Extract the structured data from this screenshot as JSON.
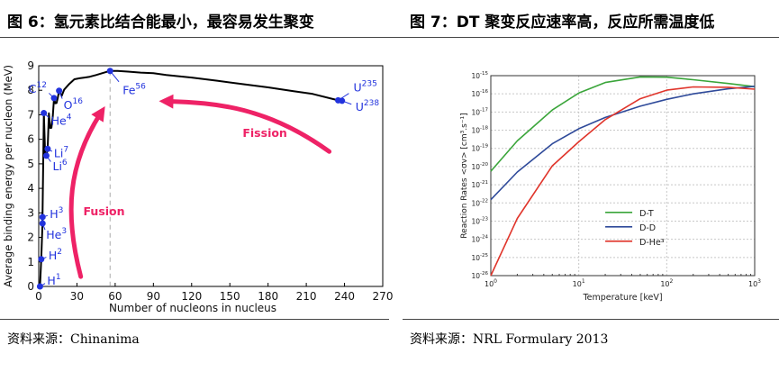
{
  "header": {
    "fig6_title": "图 6：氢元素比结合能最小，最容易发生聚变",
    "fig7_title": "图 7：DT 聚变反应速率高，反应所需温度低"
  },
  "footer": {
    "source6": "资料来源：Chinanima",
    "source7": "资料来源：NRL Formulary 2013"
  },
  "colors": {
    "nuclide": "#2233dd",
    "arrow": "#ee2266",
    "dt": "#3aa53a",
    "dd": "#2f4a9a",
    "dhe3": "#e0352b"
  },
  "chart_data": [
    {
      "type": "line",
      "xlabel": "Number of nucleons in nucleus",
      "ylabel": "Average binding energy per nucleon (MeV)",
      "xlim": [
        0,
        270
      ],
      "ylim": [
        0,
        9
      ],
      "xticks": [
        0,
        30,
        60,
        90,
        120,
        150,
        180,
        210,
        240,
        270
      ],
      "yticks": [
        0,
        1,
        2,
        3,
        4,
        5,
        6,
        7,
        8,
        9
      ],
      "series": [
        {
          "points": [
            [
              1,
              0
            ],
            [
              2,
              1.11
            ],
            [
              3,
              2.57
            ],
            [
              3,
              2.83
            ],
            [
              4,
              7.07
            ],
            [
              5,
              5.4
            ],
            [
              6,
              5.33
            ],
            [
              7,
              5.61
            ],
            [
              8,
              7.06
            ],
            [
              9,
              6.46
            ],
            [
              10,
              6.47
            ],
            [
              11,
              6.93
            ],
            [
              12,
              7.68
            ],
            [
              13,
              7.47
            ],
            [
              14,
              7.48
            ],
            [
              15,
              7.7
            ],
            [
              16,
              7.98
            ],
            [
              18,
              7.77
            ],
            [
              20,
              8.03
            ],
            [
              24,
              8.26
            ],
            [
              28,
              8.45
            ],
            [
              32,
              8.49
            ],
            [
              36,
              8.52
            ],
            [
              40,
              8.55
            ],
            [
              45,
              8.62
            ],
            [
              50,
              8.7
            ],
            [
              56,
              8.79
            ],
            [
              62,
              8.79
            ],
            [
              70,
              8.76
            ],
            [
              80,
              8.72
            ],
            [
              90,
              8.7
            ],
            [
              100,
              8.62
            ],
            [
              120,
              8.52
            ],
            [
              140,
              8.39
            ],
            [
              160,
              8.25
            ],
            [
              180,
              8.12
            ],
            [
              200,
              7.96
            ],
            [
              215,
              7.85
            ],
            [
              235,
              7.59
            ],
            [
              238,
              7.57
            ]
          ]
        }
      ],
      "nuclides": [
        {
          "symbol": "H",
          "mass": "1",
          "x": 1,
          "y": 0
        },
        {
          "symbol": "H",
          "mass": "2",
          "x": 2,
          "y": 1.11
        },
        {
          "symbol": "He",
          "mass": "3",
          "x": 3,
          "y": 2.57
        },
        {
          "symbol": "H",
          "mass": "3",
          "x": 3,
          "y": 2.83
        },
        {
          "symbol": "Li",
          "mass": "6",
          "x": 6,
          "y": 5.33
        },
        {
          "symbol": "Li",
          "mass": "7",
          "x": 7,
          "y": 5.61
        },
        {
          "symbol": "He",
          "mass": "4",
          "x": 4,
          "y": 7.07
        },
        {
          "symbol": "O",
          "mass": "16",
          "x": 16,
          "y": 7.98
        },
        {
          "symbol": "C",
          "mass": "12",
          "x": 12,
          "y": 7.68
        },
        {
          "symbol": "Fe",
          "mass": "56",
          "x": 56,
          "y": 8.79
        },
        {
          "symbol": "U",
          "mass": "235",
          "x": 235,
          "y": 7.59
        },
        {
          "symbol": "U",
          "mass": "238",
          "x": 238,
          "y": 7.57
        }
      ],
      "annotations": [
        "Fusion",
        "Fission"
      ]
    },
    {
      "type": "line",
      "log_x": true,
      "log_y": true,
      "xlabel": "Temperature [keV]",
      "ylabel": "Reaction Rates <σv> [cm³.s⁻¹]",
      "xlim": [
        1,
        1000
      ],
      "ylim": [
        1e-26,
        1e-15
      ],
      "grid": true,
      "legend_position": "lower-right",
      "series": [
        {
          "name": "D-T",
          "x": [
            1,
            2,
            5,
            10,
            20,
            50,
            100,
            200,
            500,
            1000
          ],
          "y": [
            5.5e-21,
            2.6e-19,
            1.3e-17,
            1.1e-16,
            4.2e-16,
            8.5e-16,
            8.2e-16,
            6e-16,
            3.7e-16,
            2.5e-16
          ]
        },
        {
          "name": "D-D",
          "x": [
            1,
            2,
            5,
            10,
            20,
            50,
            100,
            200,
            500,
            1000
          ],
          "y": [
            1.5e-22,
            5e-21,
            1.8e-19,
            1.2e-18,
            5e-18,
            2.1e-17,
            5e-17,
            1e-16,
            1.9e-16,
            2.6e-16
          ]
        },
        {
          "name": "D-He³",
          "x": [
            1,
            2,
            5,
            10,
            20,
            50,
            100,
            200,
            500,
            1000
          ],
          "y": [
            1e-26,
            1.4e-23,
            1.1e-20,
            2.3e-19,
            3.8e-18,
            5.4e-17,
            1.6e-16,
            2.4e-16,
            2.3e-16,
            1.8e-16
          ]
        }
      ]
    }
  ]
}
